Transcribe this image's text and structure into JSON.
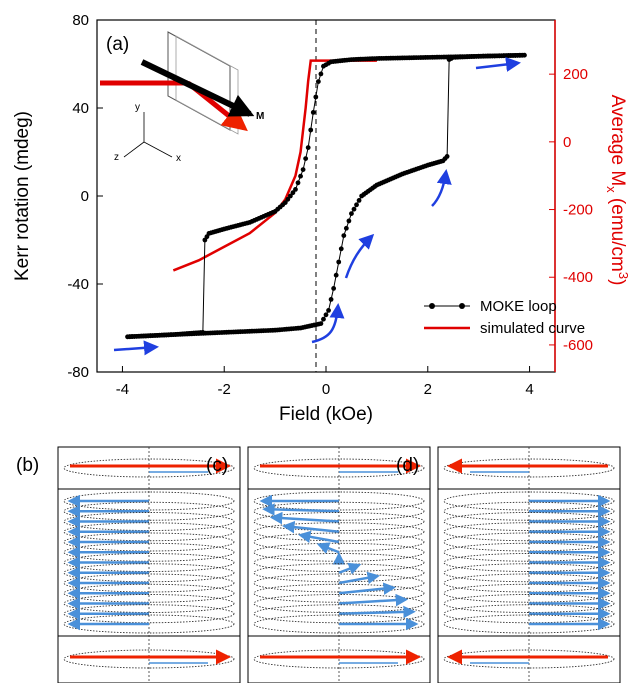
{
  "chart_data": {
    "type": "line",
    "panel_label": "(a)",
    "xlabel": "Field (kOe)",
    "ylabel": "Kerr rotation (mdeg)",
    "y2label": "Average M",
    "y2label_sub": "x",
    "y2label_unit": " (emu/cm",
    "y2label_sup": "3",
    "y2label_close": ")",
    "xlim": [
      -4.5,
      4.5
    ],
    "ylim": [
      -80,
      80
    ],
    "y2lim": [
      -680,
      360
    ],
    "x_ticks": [
      "-4",
      "-2",
      "0",
      "2",
      "4"
    ],
    "y_ticks": [
      "-80",
      "-40",
      "0",
      "40",
      "80"
    ],
    "y2_ticks": [
      "-600",
      "-400",
      "-200",
      "0",
      "200"
    ],
    "y2_color": "#e00000",
    "inset_labels": {
      "y": "y",
      "z": "z",
      "x": "x",
      "m": "M"
    },
    "series": [
      {
        "name": "MOKE loop",
        "color": "#000000",
        "axis": "left",
        "branches": [
          {
            "x": [
              -3.9,
              -3.0,
              -2.42,
              -2.38,
              -2.3,
              -2.0,
              -1.5,
              -1.0,
              -0.8,
              -0.6,
              -0.45,
              -0.35,
              -0.25,
              -0.15,
              -0.05,
              0.1,
              0.5,
              1.0,
              2.0,
              3.0,
              3.9
            ],
            "y": [
              -64,
              -63,
              -62,
              -20,
              -17,
              -15,
              -12,
              -7,
              -3,
              3,
              12,
              22,
              38,
              52,
              59,
              61,
              62,
              62.5,
              63,
              63.5,
              64
            ]
          },
          {
            "x": [
              3.9,
              3.0,
              2.5,
              2.42,
              2.38,
              2.3,
              2.0,
              1.5,
              1.0,
              0.7,
              0.5,
              0.35,
              0.25,
              0.15,
              0.05,
              -0.1,
              -0.5,
              -1.0,
              -2.0,
              -3.0,
              -3.9
            ],
            "y": [
              64,
              63.5,
              63,
              62,
              18,
              16,
              14,
              10,
              5,
              0,
              -8,
              -18,
              -30,
              -42,
              -52,
              -58,
              -60,
              -61,
              -62,
              -63,
              -64
            ]
          }
        ]
      },
      {
        "name": "simulated curve",
        "color": "#e00000",
        "axis": "right",
        "x": [
          -3.0,
          -2.5,
          -2.0,
          -1.5,
          -1.0,
          -0.8,
          -0.6,
          -0.5,
          -0.4,
          -0.35,
          -0.3,
          -0.2,
          0.0,
          0.5,
          1.0
        ],
        "y": [
          -380,
          -350,
          -310,
          -270,
          -210,
          -170,
          -100,
          -30,
          100,
          180,
          240,
          240,
          240,
          240,
          240
        ]
      }
    ],
    "legend_position": "bottom-right",
    "sub_panels": [
      "(b)",
      "(c)",
      "(d)"
    ]
  }
}
